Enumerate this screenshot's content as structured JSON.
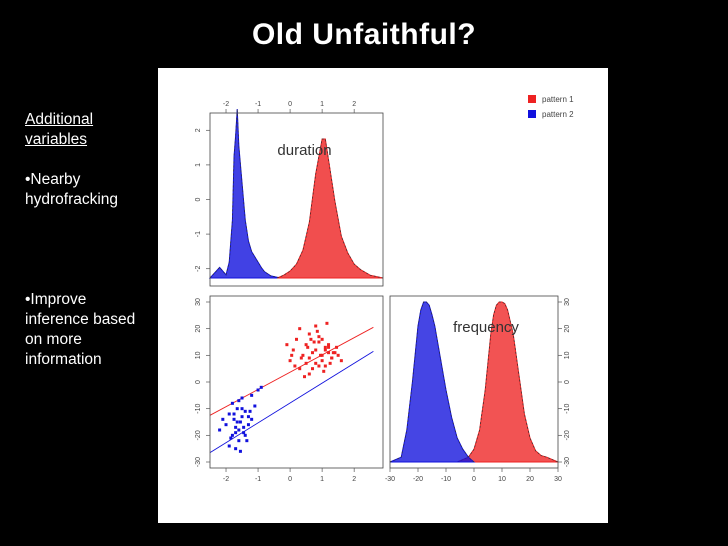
{
  "slide": {
    "title": "Old Unfaithful?"
  },
  "sidebar": {
    "heading": "Additional variables",
    "bullets": [
      "•Nearby hydrofracking",
      "•Improve inference based on more information"
    ]
  },
  "colors": {
    "pattern_1": "#ee2222",
    "pattern_2": "#1111dd",
    "overlap": "#7722aa",
    "background": "#000000"
  },
  "chart_data": {
    "type": "scatter",
    "title": "",
    "layout": "pairs-plot",
    "variables": [
      "duration",
      "frequency"
    ],
    "legend": {
      "position": "top-right",
      "entries": [
        "pattern 1",
        "pattern 2"
      ]
    },
    "panels": {
      "duration_density": {
        "type": "area",
        "label": "duration",
        "xlim": [
          -2.5,
          2.9
        ],
        "x_ticks": [
          -2,
          -1,
          0,
          1,
          2
        ],
        "y_ticks": [
          -2,
          -1,
          0,
          1,
          2
        ],
        "y_tick_labels_side": "left",
        "x_tick_labels_side": "top",
        "series": [
          {
            "name": "pattern 2",
            "x": [
              -2.5,
              -2.2,
              -2.0,
              -1.9,
              -1.8,
              -1.75,
              -1.7,
              -1.65,
              -1.6,
              -1.5,
              -1.4,
              -1.3,
              -1.2,
              -1.1,
              -1.0,
              -0.9,
              -0.8,
              -0.6,
              -0.3
            ],
            "density": [
              0,
              0.1,
              0.03,
              0.15,
              0.55,
              1.15,
              1.35,
              1.6,
              1.25,
              0.9,
              0.55,
              0.35,
              0.25,
              0.2,
              0.15,
              0.1,
              0.06,
              0.02,
              0
            ]
          },
          {
            "name": "pattern 1",
            "x": [
              -0.4,
              -0.2,
              0.0,
              0.2,
              0.4,
              0.6,
              0.8,
              1.0,
              1.1,
              1.2,
              1.4,
              1.6,
              1.8,
              2.0,
              2.2,
              2.5,
              2.9
            ],
            "density": [
              0,
              0.02,
              0.05,
              0.1,
              0.2,
              0.4,
              0.75,
              1.0,
              1.0,
              0.85,
              0.55,
              0.3,
              0.18,
              0.1,
              0.06,
              0.02,
              0
            ]
          }
        ]
      },
      "scatter": {
        "type": "scatter",
        "xlabel": "duration",
        "ylabel": "frequency",
        "xlim": [
          -2.5,
          2.9
        ],
        "ylim": [
          -30,
          30
        ],
        "x_ticks": [
          -2,
          -1,
          0,
          1,
          2
        ],
        "y_ticks": [
          -30,
          -20,
          -10,
          0,
          10,
          20,
          30
        ],
        "series": [
          {
            "name": "pattern 1",
            "x": [
              0.0,
              0.1,
              0.3,
              0.5,
              0.6,
              0.7,
              0.8,
              0.9,
              1.0,
              1.1,
              1.2,
              1.3,
              1.4,
              0.2,
              0.4,
              0.6,
              0.8,
              1.0,
              1.2,
              1.5,
              0.3,
              0.7,
              0.9,
              1.1,
              1.3,
              0.5,
              0.8,
              1.0,
              1.2,
              0.6,
              0.9,
              1.1,
              -0.1,
              1.6,
              0.45,
              0.85,
              1.05,
              0.75,
              0.95,
              1.15,
              0.55,
              1.25,
              0.65,
              1.35,
              0.35,
              0.15,
              1.45,
              0.05
            ],
            "y": [
              8,
              12,
              5,
              14,
              9,
              11,
              7,
              15,
              10,
              6,
              13,
              9,
              11,
              16,
              10,
              18,
              12,
              8,
              14,
              10,
              20,
              5,
              17,
              13,
              9,
              7,
              21,
              16,
              11,
              3,
              6,
              12,
              14,
              8,
              2,
              19,
              4,
              15,
              10,
              22,
              13,
              7,
              16,
              11,
              9,
              6,
              13,
              10
            ]
          },
          {
            "name": "pattern 2",
            "x": [
              -2.2,
              -2.0,
              -1.9,
              -1.8,
              -1.75,
              -1.7,
              -1.65,
              -1.6,
              -1.55,
              -1.5,
              -1.45,
              -1.4,
              -1.3,
              -1.2,
              -1.1,
              -1.9,
              -1.8,
              -1.7,
              -1.6,
              -1.5,
              -1.4,
              -1.75,
              -1.65,
              -1.55,
              -1.45,
              -1.85,
              -1.6,
              -1.7,
              -1.5,
              -1.3,
              -1.2,
              -1.0,
              -0.9,
              -2.1,
              -1.35,
              -1.25
            ],
            "y": [
              -18,
              -16,
              -12,
              -20,
              -14,
              -17,
              -10,
              -22,
              -15,
              -13,
              -19,
              -11,
              -16,
              -14,
              -9,
              -24,
              -8,
              -25,
              -18,
              -6,
              -20,
              -12,
              -15,
              -26,
              -17,
              -21,
              -7,
              -19,
              -10,
              -13,
              -5,
              -3,
              -2,
              -14,
              -22,
              -11
            ]
          }
        ],
        "regression_lines": [
          {
            "name": "pattern 1",
            "x": [
              -2.5,
              2.6
            ],
            "y": [
              -12.5,
              20.5
            ]
          },
          {
            "name": "pattern 2",
            "x": [
              -2.5,
              2.6
            ],
            "y": [
              -26.5,
              11.5
            ]
          }
        ]
      },
      "frequency_density": {
        "type": "area",
        "label": "frequency",
        "xlim": [
          -30,
          30
        ],
        "x_ticks": [
          -30,
          -20,
          -10,
          0,
          10,
          20,
          30
        ],
        "y_ticks": [
          -30,
          -20,
          -10,
          0,
          10,
          20,
          30
        ],
        "y_tick_labels_side": "right",
        "series": [
          {
            "name": "pattern 2",
            "x": [
              -30,
              -26,
              -24,
              -22,
              -20,
              -19,
              -18,
              -17,
              -16,
              -15,
              -14,
              -12,
              -10,
              -8,
              -6,
              -4,
              -2,
              0
            ],
            "density": [
              0,
              0.03,
              0.2,
              0.5,
              0.85,
              0.95,
              1.0,
              1.0,
              0.98,
              0.92,
              0.85,
              0.65,
              0.45,
              0.28,
              0.15,
              0.08,
              0.03,
              0
            ]
          },
          {
            "name": "pattern 1",
            "x": [
              -6,
              -2,
              0,
              2,
              4,
              6,
              7,
              8,
              9,
              10,
              11,
              12,
              14,
              16,
              18,
              20,
              22,
              24,
              26,
              30
            ],
            "density": [
              0,
              0.03,
              0.08,
              0.2,
              0.45,
              0.8,
              0.92,
              0.98,
              1.0,
              1.0,
              0.99,
              0.95,
              0.8,
              0.55,
              0.3,
              0.15,
              0.07,
              0.04,
              0.03,
              0
            ]
          }
        ]
      }
    }
  }
}
